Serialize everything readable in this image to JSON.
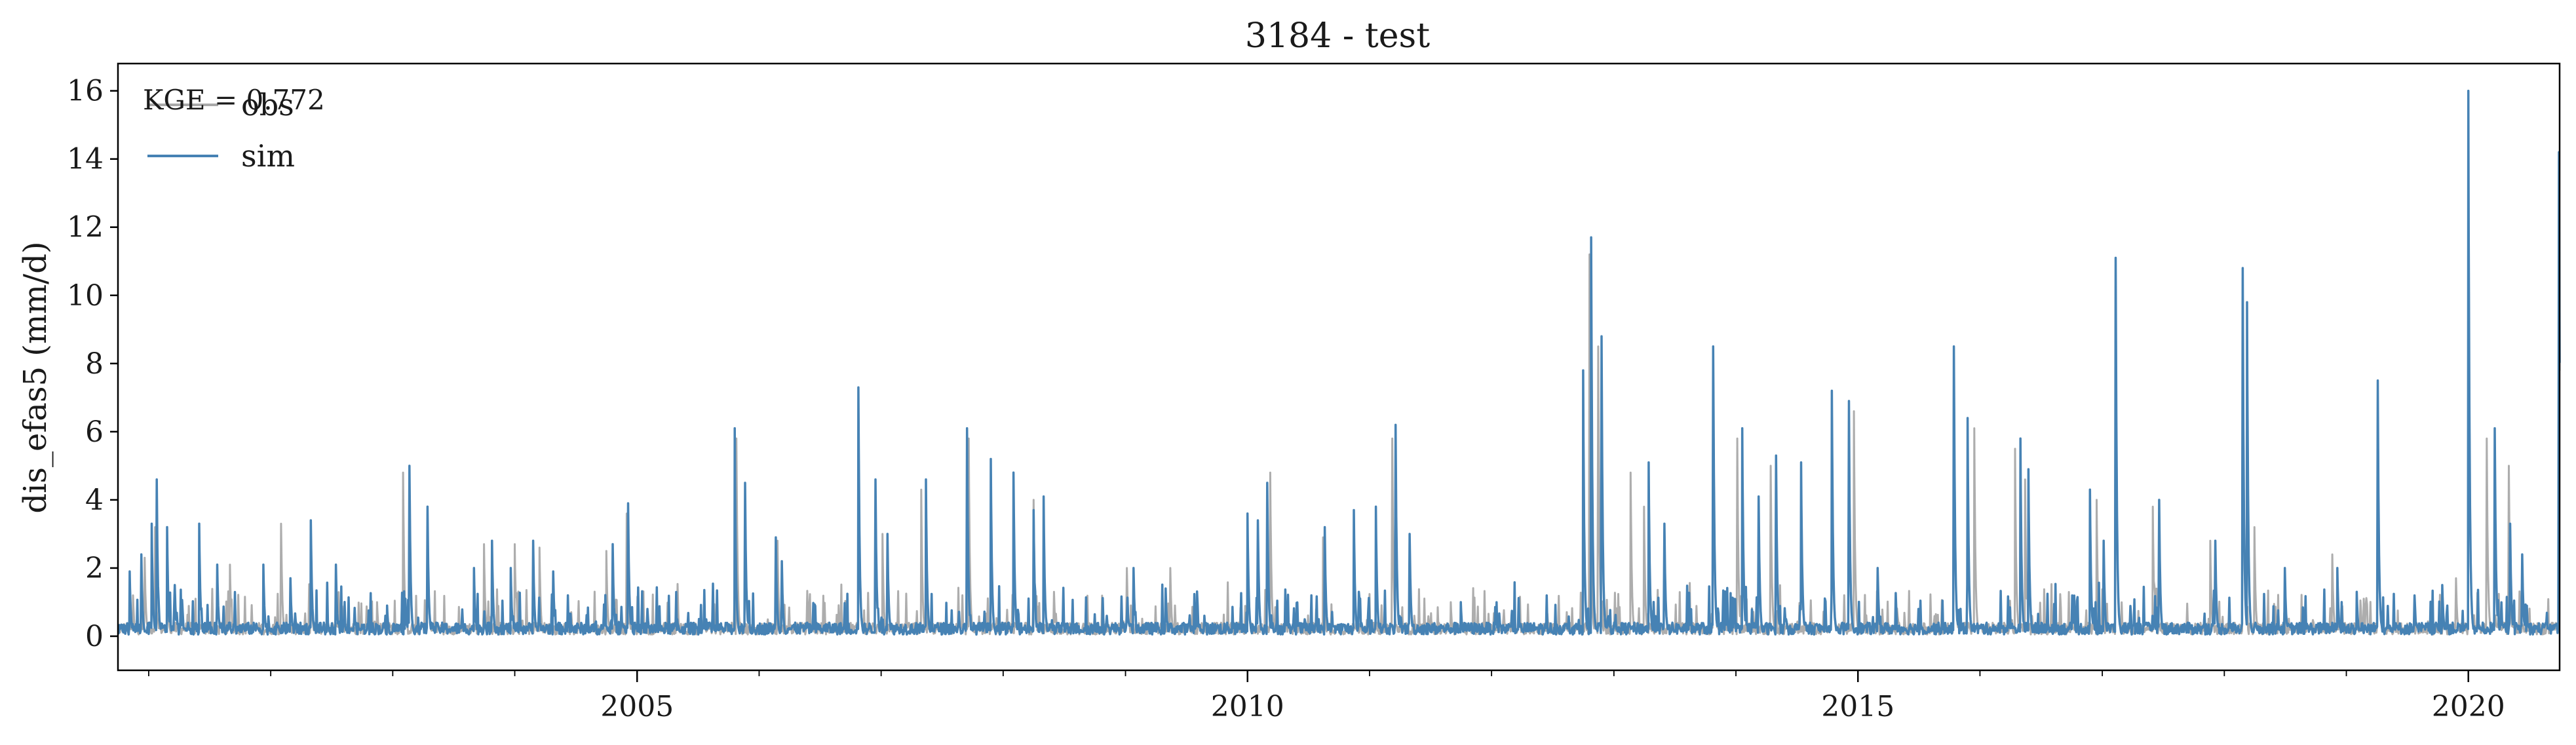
{
  "chart_data": {
    "type": "line",
    "title": "3184 - test",
    "xlabel": "",
    "ylabel": "dis_efas5 (mm/d)",
    "xlim": [
      "2000-10-01",
      "2020-09-30"
    ],
    "ylim": [
      -1.0,
      16.8
    ],
    "x_ticks": [
      {
        "date": "2005-01-01",
        "label": "2005"
      },
      {
        "date": "2010-01-01",
        "label": "2010"
      },
      {
        "date": "2015-01-01",
        "label": "2015"
      },
      {
        "date": "2020-01-01",
        "label": "2020"
      }
    ],
    "y_ticks": [
      0,
      2,
      4,
      6,
      8,
      10,
      12,
      14,
      16
    ],
    "grid": false,
    "legend": {
      "placement": "top-left",
      "entries": [
        "obs",
        "sim"
      ]
    },
    "annotation": "KGE = 0.772",
    "series": [
      {
        "name": "obs",
        "color": "#a9a9a9",
        "points": [
          [
            "2000-10-05",
            0.15
          ],
          [
            "2000-11-15",
            1.2
          ],
          [
            "2000-12-20",
            2.3
          ],
          [
            "2001-01-20",
            3.2
          ],
          [
            "2001-02-25",
            2.0
          ],
          [
            "2001-06-01",
            0.5
          ],
          [
            "2001-09-01",
            2.1
          ],
          [
            "2002-02-01",
            3.3
          ],
          [
            "2002-05-01",
            2.1
          ],
          [
            "2002-11-15",
            1.0
          ],
          [
            "2003-02-01",
            4.8
          ],
          [
            "2003-04-15",
            3.6
          ],
          [
            "2003-10-01",
            2.7
          ],
          [
            "2004-01-01",
            2.7
          ],
          [
            "2004-03-15",
            2.6
          ],
          [
            "2004-10-01",
            2.5
          ],
          [
            "2004-12-01",
            3.6
          ],
          [
            "2005-05-01",
            0.7
          ],
          [
            "2005-10-25",
            5.8
          ],
          [
            "2006-02-25",
            2.8
          ],
          [
            "2006-10-25",
            6.9
          ],
          [
            "2007-01-05",
            3.0
          ],
          [
            "2007-05-01",
            4.3
          ],
          [
            "2007-09-20",
            5.8
          ],
          [
            "2008-04-01",
            4.0
          ],
          [
            "2008-06-01",
            1.3
          ],
          [
            "2009-01-05",
            2.0
          ],
          [
            "2009-05-15",
            2.0
          ],
          [
            "2010-01-01",
            3.5
          ],
          [
            "2010-03-10",
            4.8
          ],
          [
            "2010-08-15",
            2.9
          ],
          [
            "2011-03-10",
            5.8
          ],
          [
            "2011-05-15",
            0.6
          ],
          [
            "2011-09-01",
            1.0
          ],
          [
            "2012-10-20",
            11.2
          ],
          [
            "2012-11-15",
            8.5
          ],
          [
            "2013-02-20",
            4.8
          ],
          [
            "2013-04-01",
            3.8
          ],
          [
            "2013-10-25",
            8.2
          ],
          [
            "2014-01-05",
            5.8
          ],
          [
            "2014-04-15",
            5.0
          ],
          [
            "2014-10-15",
            7.0
          ],
          [
            "2014-12-20",
            6.6
          ],
          [
            "2015-10-15",
            8.2
          ],
          [
            "2015-12-15",
            6.1
          ],
          [
            "2016-04-15",
            5.5
          ],
          [
            "2016-05-15",
            4.6
          ],
          [
            "2016-12-15",
            4.0
          ],
          [
            "2017-02-10",
            10.8
          ],
          [
            "2017-06-01",
            3.8
          ],
          [
            "2017-11-20",
            2.8
          ],
          [
            "2018-02-25",
            10.5
          ],
          [
            "2018-04-01",
            3.2
          ],
          [
            "2018-11-20",
            2.4
          ],
          [
            "2019-04-05",
            7.1
          ],
          [
            "2019-11-25",
            1.7
          ],
          [
            "2020-01-01",
            15.5
          ],
          [
            "2020-02-25",
            5.8
          ],
          [
            "2020-05-01",
            5.0
          ],
          [
            "2020-09-28",
            13.8
          ]
        ]
      },
      {
        "name": "sim",
        "color": "#4682b4",
        "points": [
          [
            "2000-10-05",
            0.2
          ],
          [
            "2000-11-05",
            1.9
          ],
          [
            "2000-12-10",
            2.4
          ],
          [
            "2001-01-10",
            3.3
          ],
          [
            "2001-01-25",
            4.6
          ],
          [
            "2001-02-25",
            3.2
          ],
          [
            "2001-03-20",
            1.5
          ],
          [
            "2001-06-01",
            3.3
          ],
          [
            "2001-07-25",
            2.1
          ],
          [
            "2001-09-01",
            0.4
          ],
          [
            "2001-12-10",
            2.1
          ],
          [
            "2002-03-01",
            1.7
          ],
          [
            "2002-05-01",
            3.4
          ],
          [
            "2002-07-15",
            2.1
          ],
          [
            "2002-12-15",
            0.9
          ],
          [
            "2003-02-20",
            5.0
          ],
          [
            "2003-04-15",
            3.8
          ],
          [
            "2003-09-01",
            2.0
          ],
          [
            "2003-10-25",
            2.8
          ],
          [
            "2003-12-20",
            2.0
          ],
          [
            "2004-02-25",
            2.8
          ],
          [
            "2004-04-25",
            1.9
          ],
          [
            "2004-10-20",
            2.7
          ],
          [
            "2004-12-05",
            3.9
          ],
          [
            "2005-02-01",
            0.8
          ],
          [
            "2005-05-01",
            0.5
          ],
          [
            "2005-10-20",
            6.1
          ],
          [
            "2005-11-20",
            4.5
          ],
          [
            "2006-02-20",
            2.9
          ],
          [
            "2006-03-10",
            2.2
          ],
          [
            "2006-10-25",
            7.3
          ],
          [
            "2006-12-15",
            4.6
          ],
          [
            "2007-01-20",
            3.0
          ],
          [
            "2007-05-15",
            4.6
          ],
          [
            "2007-09-15",
            6.1
          ],
          [
            "2007-11-25",
            5.2
          ],
          [
            "2008-02-01",
            4.8
          ],
          [
            "2008-04-01",
            3.7
          ],
          [
            "2008-05-01",
            4.1
          ],
          [
            "2009-01-25",
            2.0
          ],
          [
            "2009-05-01",
            1.4
          ],
          [
            "2010-01-01",
            3.6
          ],
          [
            "2010-02-01",
            3.4
          ],
          [
            "2010-03-01",
            4.5
          ],
          [
            "2010-08-20",
            3.2
          ],
          [
            "2010-11-15",
            3.7
          ],
          [
            "2011-01-20",
            3.8
          ],
          [
            "2011-03-20",
            6.2
          ],
          [
            "2011-05-01",
            3.0
          ],
          [
            "2011-10-01",
            1.0
          ],
          [
            "2012-03-01",
            0.6
          ],
          [
            "2012-10-01",
            7.8
          ],
          [
            "2012-10-25",
            11.7
          ],
          [
            "2012-11-25",
            8.8
          ],
          [
            "2013-04-15",
            5.1
          ],
          [
            "2013-06-01",
            3.3
          ],
          [
            "2013-10-25",
            8.5
          ],
          [
            "2014-01-20",
            6.1
          ],
          [
            "2014-03-10",
            4.1
          ],
          [
            "2014-05-01",
            5.3
          ],
          [
            "2014-07-15",
            5.1
          ],
          [
            "2014-10-15",
            7.2
          ],
          [
            "2014-12-05",
            6.9
          ],
          [
            "2015-03-01",
            2.0
          ],
          [
            "2015-10-15",
            8.5
          ],
          [
            "2015-11-25",
            6.4
          ],
          [
            "2016-05-01",
            5.8
          ],
          [
            "2016-05-25",
            4.9
          ],
          [
            "2016-11-25",
            4.3
          ],
          [
            "2017-01-05",
            2.8
          ],
          [
            "2017-02-10",
            11.1
          ],
          [
            "2017-06-20",
            4.0
          ],
          [
            "2017-12-05",
            2.8
          ],
          [
            "2018-02-25",
            10.8
          ],
          [
            "2018-03-10",
            9.8
          ],
          [
            "2018-07-01",
            2.0
          ],
          [
            "2018-12-05",
            2.0
          ],
          [
            "2019-02-01",
            1.3
          ],
          [
            "2019-04-05",
            7.5
          ],
          [
            "2019-10-15",
            1.5
          ],
          [
            "2020-01-01",
            16.0
          ],
          [
            "2020-03-20",
            6.1
          ],
          [
            "2020-05-05",
            3.3
          ],
          [
            "2020-06-10",
            2.4
          ],
          [
            "2020-09-28",
            14.2
          ]
        ]
      }
    ]
  }
}
